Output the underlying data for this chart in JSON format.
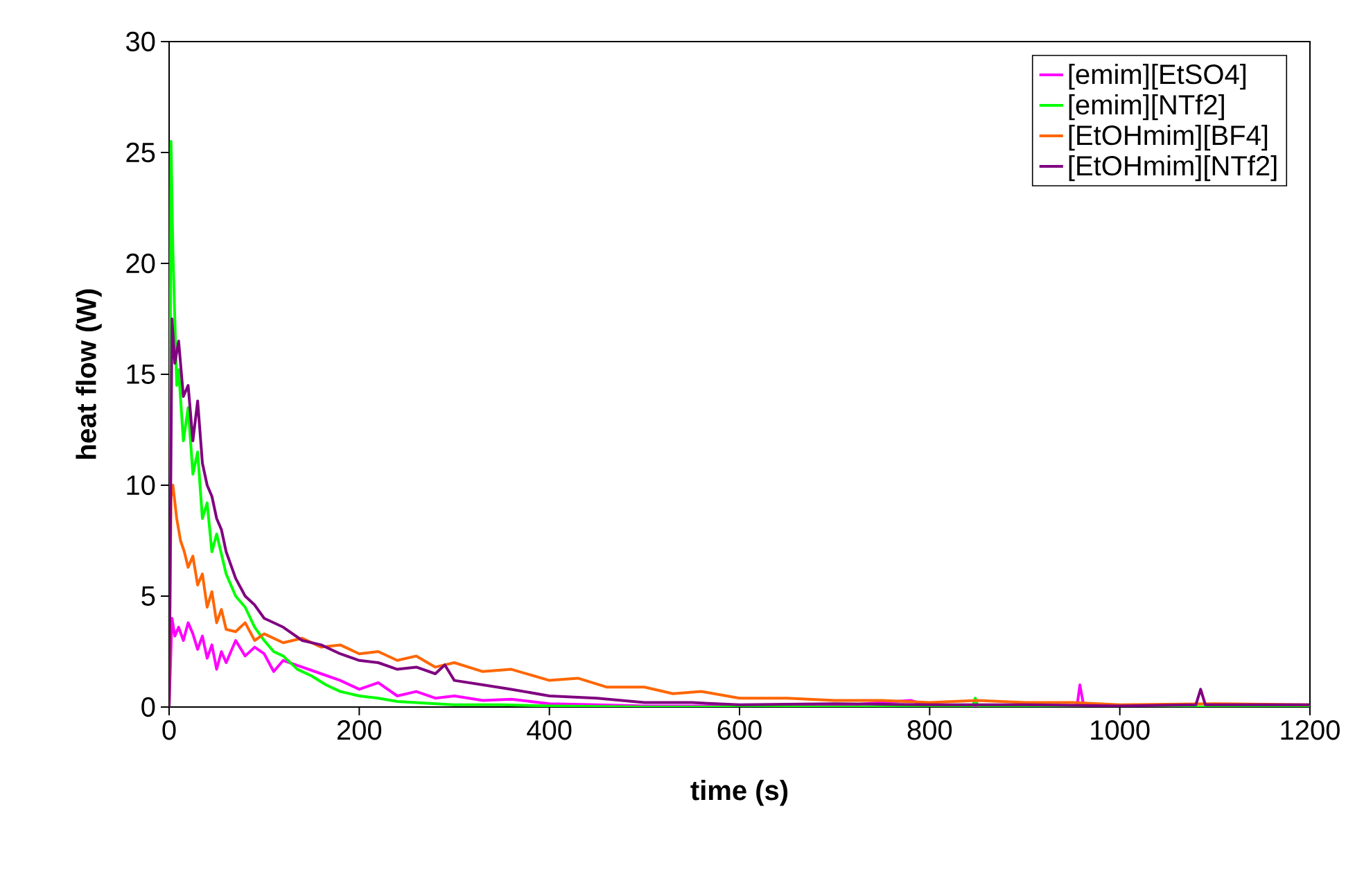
{
  "chart_data": {
    "type": "line",
    "xlabel": "time (s)",
    "ylabel": "heat flow (W)",
    "xlim": [
      0,
      1200
    ],
    "ylim": [
      0,
      30
    ],
    "xticks": [
      0,
      200,
      400,
      600,
      800,
      1000,
      1200
    ],
    "yticks": [
      0,
      5,
      10,
      15,
      20,
      25,
      30
    ],
    "grid": false,
    "legend": "top right",
    "marker": "none",
    "line_style": "solid",
    "series": [
      {
        "name": "[emim][EtSO4]",
        "color": "#ff00ff",
        "x": [
          0,
          3,
          6,
          10,
          15,
          20,
          25,
          30,
          35,
          40,
          45,
          50,
          55,
          60,
          70,
          80,
          90,
          100,
          110,
          120,
          140,
          160,
          180,
          200,
          220,
          240,
          260,
          280,
          300,
          330,
          360,
          400,
          450,
          500,
          600,
          700,
          780,
          800,
          955,
          958,
          962,
          965
        ],
        "values": [
          0,
          4.0,
          3.2,
          3.6,
          3.0,
          3.8,
          3.3,
          2.6,
          3.2,
          2.2,
          2.8,
          1.7,
          2.5,
          2.0,
          3.0,
          2.3,
          2.7,
          2.4,
          1.6,
          2.1,
          1.8,
          1.5,
          1.2,
          0.8,
          1.1,
          0.5,
          0.7,
          0.4,
          0.5,
          0.3,
          0.35,
          0.15,
          0.1,
          0.05,
          0.05,
          0.05,
          0.3,
          0.05,
          0.05,
          1.0,
          0.05,
          0.05
        ]
      },
      {
        "name": "[emim][NTf2]",
        "color": "#00ff00",
        "x": [
          0,
          2,
          4,
          6,
          8,
          10,
          15,
          20,
          25,
          30,
          35,
          40,
          45,
          50,
          60,
          70,
          80,
          90,
          100,
          110,
          120,
          135,
          150,
          165,
          180,
          200,
          220,
          240,
          260,
          280,
          300,
          350,
          400,
          500,
          600,
          700,
          845,
          848,
          851,
          900,
          1100,
          1200
        ],
        "values": [
          0,
          25.5,
          20.5,
          17.5,
          14.5,
          15.2,
          12.0,
          13.5,
          10.5,
          11.5,
          8.5,
          9.2,
          7.0,
          7.8,
          6.0,
          5.0,
          4.5,
          3.6,
          3.0,
          2.5,
          2.3,
          1.7,
          1.4,
          1.0,
          0.7,
          0.5,
          0.4,
          0.25,
          0.2,
          0.15,
          0.1,
          0.1,
          0.05,
          0.0,
          0.0,
          0.0,
          0.0,
          0.4,
          0.0,
          0.0,
          0.0,
          0.0
        ]
      },
      {
        "name": "[EtOHmim][BF4]",
        "color": "#ff6600",
        "x": [
          0,
          2,
          4,
          8,
          12,
          16,
          20,
          25,
          30,
          35,
          40,
          45,
          50,
          55,
          60,
          70,
          80,
          90,
          100,
          120,
          140,
          160,
          180,
          200,
          220,
          240,
          260,
          280,
          300,
          330,
          360,
          400,
          430,
          460,
          500,
          530,
          560,
          600,
          650,
          700,
          750,
          800,
          850,
          900,
          950,
          1000,
          1100,
          1200
        ],
        "values": [
          0,
          9.5,
          10.0,
          8.5,
          7.5,
          7.0,
          6.3,
          6.8,
          5.5,
          6.0,
          4.5,
          5.2,
          3.8,
          4.4,
          3.5,
          3.4,
          3.8,
          3.0,
          3.3,
          2.9,
          3.1,
          2.7,
          2.8,
          2.4,
          2.5,
          2.1,
          2.3,
          1.8,
          2.0,
          1.6,
          1.7,
          1.2,
          1.3,
          0.9,
          0.9,
          0.6,
          0.7,
          0.4,
          0.4,
          0.3,
          0.3,
          0.2,
          0.3,
          0.2,
          0.2,
          0.1,
          0.15,
          0.1
        ]
      },
      {
        "name": "[EtOHmim][NTf2]",
        "color": "#800080",
        "x": [
          0,
          3,
          6,
          10,
          15,
          20,
          25,
          30,
          35,
          40,
          45,
          50,
          55,
          60,
          70,
          80,
          90,
          100,
          110,
          120,
          140,
          160,
          180,
          200,
          220,
          240,
          260,
          280,
          290,
          300,
          330,
          360,
          400,
          450,
          500,
          550,
          600,
          700,
          800,
          900,
          1000,
          1080,
          1085,
          1090,
          1200
        ],
        "values": [
          0,
          17.5,
          15.5,
          16.5,
          14.0,
          14.5,
          12.0,
          13.8,
          11.0,
          10.0,
          9.5,
          8.5,
          8.0,
          7.0,
          5.8,
          5.0,
          4.6,
          4.0,
          3.8,
          3.6,
          3.0,
          2.8,
          2.4,
          2.1,
          2.0,
          1.7,
          1.8,
          1.5,
          1.9,
          1.2,
          1.0,
          0.8,
          0.5,
          0.4,
          0.2,
          0.2,
          0.1,
          0.15,
          0.1,
          0.1,
          0.05,
          0.1,
          0.8,
          0.1,
          0.1
        ]
      }
    ]
  }
}
